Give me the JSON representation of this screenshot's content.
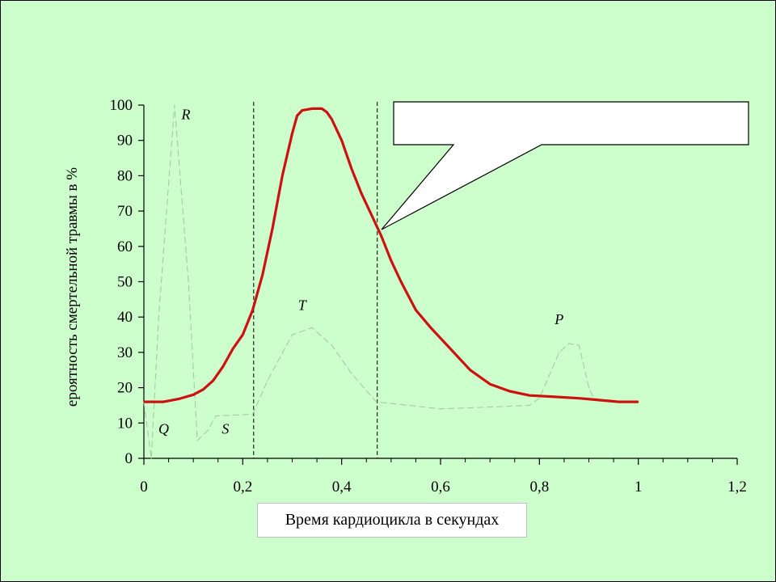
{
  "chart_data": {
    "type": "line",
    "title": "",
    "xlabel": "Время кардиоцикла в секундах",
    "ylabel": "ероятность смертельной травмы в %",
    "xlim": [
      0,
      1.2
    ],
    "ylim": [
      0,
      100
    ],
    "x_ticks": [
      "0",
      "0,2",
      "0,4",
      "0,6",
      "0,8",
      "1",
      "1,2"
    ],
    "x_tick_values": [
      0,
      0.2,
      0.4,
      0.6,
      0.8,
      1.0,
      1.2
    ],
    "y_ticks": [
      "0",
      "10",
      "20",
      "30",
      "40",
      "50",
      "60",
      "70",
      "80",
      "90",
      "100"
    ],
    "y_tick_values": [
      0,
      10,
      20,
      30,
      40,
      50,
      60,
      70,
      80,
      90,
      100
    ],
    "vlines_x": [
      0.222,
      0.472
    ],
    "wave_labels": [
      {
        "text": "R",
        "x": 0.085,
        "y": 96
      },
      {
        "text": "Q",
        "x": 0.04,
        "y": 7
      },
      {
        "text": "S",
        "x": 0.165,
        "y": 7
      },
      {
        "text": "T",
        "x": 0.32,
        "y": 42
      },
      {
        "text": "P",
        "x": 0.84,
        "y": 38
      }
    ],
    "series": [
      {
        "color": "#cc1111",
        "x": [
          0,
          0.04,
          0.07,
          0.1,
          0.12,
          0.14,
          0.16,
          0.18,
          0.2,
          0.22,
          0.24,
          0.26,
          0.28,
          0.3,
          0.31,
          0.32,
          0.34,
          0.36,
          0.37,
          0.38,
          0.4,
          0.42,
          0.44,
          0.46,
          0.48,
          0.5,
          0.52,
          0.55,
          0.58,
          0.62,
          0.66,
          0.7,
          0.74,
          0.78,
          0.82,
          0.88,
          0.92,
          0.96,
          1.0
        ],
        "y": [
          16,
          16,
          16.8,
          18,
          19.5,
          22,
          26,
          31,
          35,
          42,
          52,
          65,
          80,
          92,
          97,
          98.5,
          99,
          99,
          98,
          96,
          90,
          82,
          75,
          69,
          63,
          56,
          50,
          42,
          37,
          31,
          25,
          21,
          19,
          17.8,
          17.5,
          17,
          16.5,
          16,
          16
        ]
      },
      {
        "color": "#a8c8a8",
        "x": [
          0,
          0.015,
          0.03,
          0.062,
          0.09,
          0.108,
          0.13,
          0.145,
          0.22,
          0.25,
          0.3,
          0.34,
          0.38,
          0.42,
          0.47,
          0.6,
          0.7,
          0.78,
          0.8,
          0.84,
          0.86,
          0.88,
          0.9,
          0.91,
          0.93
        ],
        "y": [
          16,
          0,
          40,
          100,
          50,
          5,
          8,
          12,
          12.5,
          22,
          35,
          37,
          32,
          24,
          16,
          14,
          14.5,
          15,
          17,
          30,
          32.5,
          32,
          20,
          17,
          16.5
        ]
      }
    ]
  },
  "callout": {
    "text": ""
  }
}
